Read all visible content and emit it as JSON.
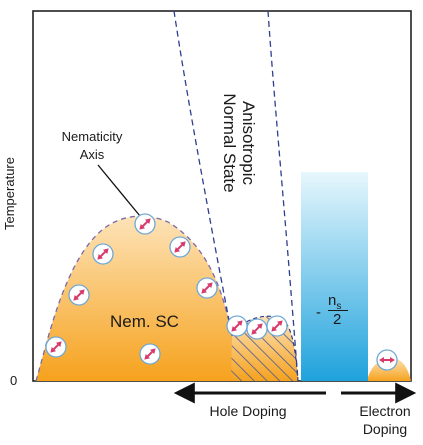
{
  "labels": {
    "y_axis": "Temperature",
    "origin": "0",
    "nematicity_axis": "Nematicity Axis",
    "nem_sc": "Nem. SC",
    "anisotropic_normal_state": "Anisotropic Normal State",
    "hole_doping": "Hole Doping",
    "electron_doping": "Electron Doping",
    "ns_minus": "-",
    "ns_numerator": "n",
    "ns_subscript": "s",
    "ns_denominator": "2"
  },
  "colors": {
    "dome_top": "#fde3b8",
    "dome_bottom": "#f6a21d",
    "dome_stroke": "#7a6aa8",
    "dashed_line": "#2e3f8f",
    "hatch": "#4a5a94",
    "cyan_top": "#e3f5fc",
    "cyan_bottom": "#2aa7de",
    "arrow_dot": "#d63b6c",
    "arrow": "#111111"
  },
  "icons": [
    "nematic-director-icon"
  ]
}
